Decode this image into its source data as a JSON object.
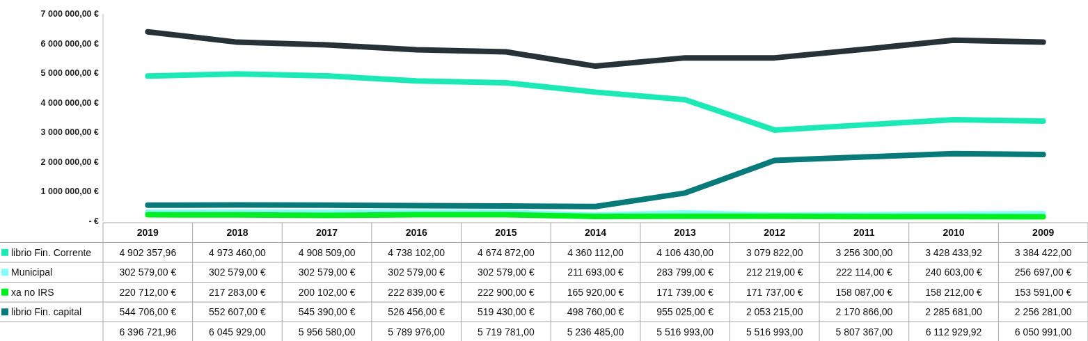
{
  "chart_data": {
    "type": "line",
    "categories": [
      "2019",
      "2018",
      "2017",
      "2016",
      "2015",
      "2014",
      "2013",
      "2012",
      "2011",
      "2010",
      "2009"
    ],
    "series": [
      {
        "name": "librio Fin. Corrente",
        "color": "#1de9b6",
        "values": [
          4902357.96,
          4973460,
          4908509,
          4738102,
          4674872,
          4360112,
          4106430,
          3079822,
          3256300,
          3428433.92,
          3384422
        ],
        "value_labels": [
          "4 902 357,96",
          "4 973 460,00",
          "4 908 509,00",
          "4 738 102,00",
          "4 674 872,00",
          "4 360 112,00",
          "4 106 430,00",
          "3 079 822,00",
          "3 256 300,00",
          "3 428 433,92",
          "3 384 422,00"
        ]
      },
      {
        "name": "Municipal",
        "color": "#84ffff",
        "values": [
          302579,
          302579,
          302579,
          302579,
          302579,
          211693,
          283799,
          212219,
          222114,
          240603,
          256697
        ],
        "value_labels": [
          "302 579,00 €",
          "302 579,00 €",
          "302 579,00 €",
          "302 579,00 €",
          "302 579,00 €",
          "211 693,00 €",
          "283 799,00 €",
          "212 219,00 €",
          "222 114,00 €",
          "240 603,00 €",
          "256 697,00 €"
        ]
      },
      {
        "name": "xa no IRS",
        "color": "#00ee22",
        "values": [
          220712,
          217283,
          200102,
          222839,
          222900,
          165920,
          171739,
          171737,
          158087,
          158212,
          153591
        ],
        "value_labels": [
          "220 712,00 €",
          "217 283,00 €",
          "200 102,00 €",
          "222 839,00 €",
          "222 900,00 €",
          "165 920,00 €",
          "171 739,00 €",
          "171 737,00 €",
          "158 087,00 €",
          "158 212,00 €",
          "153 591,00 €"
        ]
      },
      {
        "name": "librio Fin. capital",
        "color": "#087a7a",
        "values": [
          544706,
          552607,
          545390,
          526456,
          519430,
          498760,
          955025,
          2053215,
          2170866,
          2285681,
          2256281
        ],
        "value_labels": [
          "544 706,00 €",
          "552 607,00 €",
          "545 390,00 €",
          "526 456,00 €",
          "519 430,00 €",
          "498 760,00 €",
          "955 025,00 €",
          "2 053 215,00",
          "2 170 866,00",
          "2 285 681,00",
          "2 256 281,00"
        ]
      },
      {
        "color": "#263238",
        "values": [
          6396721.96,
          6045929,
          5956580,
          5789976,
          5719781,
          5236485,
          5516993,
          5516993,
          5807367,
          6112929.92,
          6050991
        ],
        "value_labels": [
          "6 396 721,96",
          "6 045 929,00",
          "5 956 580,00",
          "5 789 976,00",
          "5 719 781,00",
          "5 236 485,00",
          "5 516 993,00",
          "5 516 993,00",
          "5 807 367,00",
          "6 112 929,92",
          "6 050 991,00"
        ]
      }
    ],
    "ylim": [
      0,
      7000000
    ],
    "yticks": [
      {
        "value": 0,
        "label": "-  €"
      },
      {
        "value": 1000000,
        "label": "1 000 000,00 €"
      },
      {
        "value": 2000000,
        "label": "2 000 000,00 €"
      },
      {
        "value": 3000000,
        "label": "3 000 000,00 €"
      },
      {
        "value": 4000000,
        "label": "4 000 000,00 €"
      },
      {
        "value": 5000000,
        "label": "5 000 000,00 €"
      },
      {
        "value": 6000000,
        "label": "6 000 000,00 €"
      },
      {
        "value": 7000000,
        "label": "7 000 000,00 €"
      }
    ],
    "grid": false,
    "legend": "bottom",
    "line_style": "solid",
    "marker": "none"
  }
}
